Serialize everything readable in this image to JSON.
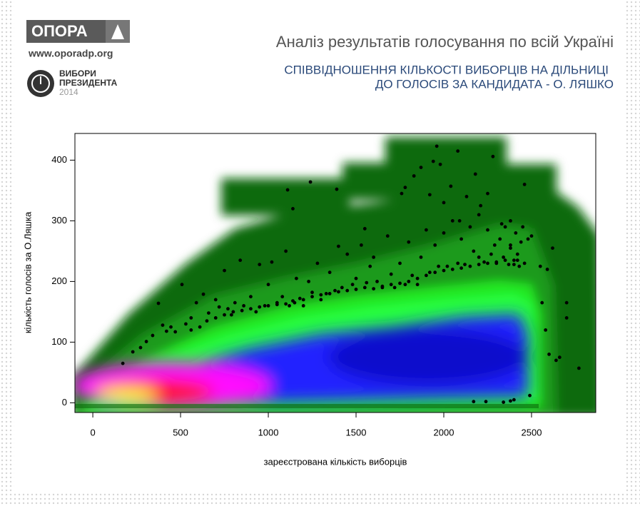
{
  "header": {
    "logo": "ОПОРА",
    "site": "www.oporadp.org",
    "election": [
      "ВИБОРИ",
      "ПРЕЗИДЕНТА"
    ],
    "year": "2014"
  },
  "chart_data": {
    "type": "scatter",
    "title": "Аналіз результатів голосування по всій Україні",
    "subtitle": [
      "СПІВВІДНОШЕННЯ КІЛЬКОСТІ ВИБОРЦІВ НА ДІЛЬНИЦІ",
      "ДО ГОЛОСІВ ЗА КАНДИДАТА - О. ЛЯШКО"
    ],
    "xlabel": "зареєстрована кількість виборців",
    "ylabel": "кількість голосів за О.Ляшка",
    "xlim": [
      -102,
      2866
    ],
    "ylim": [
      -16,
      444
    ],
    "xticks": [
      0,
      500,
      1000,
      1500,
      2000,
      2500
    ],
    "yticks": [
      0,
      100,
      200,
      300,
      400
    ],
    "color": "#000000",
    "x": [
      171,
      228,
      272,
      305,
      341,
      374,
      398,
      420,
      445,
      470,
      508,
      530,
      560,
      590,
      630,
      660,
      700,
      720,
      750,
      770,
      790,
      810,
      840,
      860,
      900,
      930,
      950,
      980,
      1000,
      1020,
      1050,
      1080,
      1100,
      1120,
      1140,
      1160,
      1180,
      1200,
      1230,
      1250,
      1280,
      1300,
      1330,
      1350,
      1380,
      1400,
      1420,
      1450,
      1480,
      1500,
      1530,
      1560,
      1580,
      1600,
      1620,
      1650,
      1680,
      1700,
      1720,
      1750,
      1780,
      1800,
      1820,
      1850,
      1870,
      1900,
      1920,
      1950,
      1970,
      2000,
      2020,
      2050,
      2080,
      2100,
      2120,
      2150,
      2170,
      2200,
      2210,
      2230,
      2250,
      2270,
      2290,
      2300,
      2320,
      2340,
      2350,
      2370,
      2380,
      2400,
      2410,
      2420,
      2430,
      2440,
      2450,
      2460,
      2480,
      2500,
      2550,
      2590,
      560,
      610,
      650,
      700,
      750,
      800,
      850,
      900,
      950,
      1000,
      1050,
      1100,
      1150,
      1200,
      1250,
      1300,
      1350,
      1400,
      1450,
      1500,
      1550,
      1600,
      1650,
      1700,
      1750,
      1800,
      1850,
      1900,
      1950,
      2000,
      2050,
      2100,
      2150,
      2200,
      2250,
      2300,
      2350,
      2400,
      2420,
      2380,
      1110,
      1140,
      1240,
      1390,
      1550,
      1760,
      1780,
      1830,
      1870,
      1940,
      1960,
      1980,
      2040,
      2080,
      2180,
      2280,
      2250,
      2460,
      1920,
      2000,
      2130,
      2090,
      2200,
      2330,
      2380,
      2170,
      2240,
      2340,
      2380,
      2400,
      2490,
      2560,
      2580,
      2600,
      2640,
      2700,
      2770,
      2620,
      2660,
      2700
    ],
    "y": [
      65,
      84,
      91,
      101,
      111,
      164,
      128,
      118,
      125,
      117,
      195,
      130,
      140,
      165,
      179,
      148,
      170,
      158,
      218,
      155,
      145,
      165,
      235,
      160,
      175,
      150,
      228,
      160,
      195,
      232,
      165,
      175,
      250,
      160,
      168,
      205,
      172,
      160,
      200,
      182,
      230,
      170,
      180,
      215,
      185,
      258,
      190,
      245,
      195,
      205,
      260,
      198,
      225,
      240,
      200,
      190,
      275,
      212,
      190,
      230,
      195,
      265,
      210,
      195,
      240,
      285,
      215,
      260,
      225,
      280,
      225,
      300,
      230,
      270,
      228,
      290,
      250,
      240,
      325,
      232,
      285,
      245,
      260,
      230,
      270,
      240,
      290,
      228,
      255,
      235,
      280,
      245,
      225,
      265,
      290,
      230,
      270,
      275,
      225,
      220,
      120,
      125,
      135,
      140,
      145,
      150,
      152,
      155,
      158,
      160,
      162,
      163,
      165,
      170,
      175,
      178,
      180,
      183,
      185,
      187,
      190,
      188,
      192,
      195,
      197,
      200,
      205,
      210,
      215,
      218,
      220,
      222,
      225,
      228,
      230,
      232,
      235,
      228,
      235,
      260,
      351,
      320,
      364,
      352,
      287,
      345,
      355,
      374,
      388,
      398,
      423,
      393,
      357,
      415,
      377,
      406,
      345,
      360,
      343,
      330,
      340,
      300,
      310,
      295,
      300,
      2,
      2,
      1,
      3,
      5,
      12,
      165,
      120,
      80,
      70,
      165,
      57,
      255,
      75,
      140
    ]
  }
}
